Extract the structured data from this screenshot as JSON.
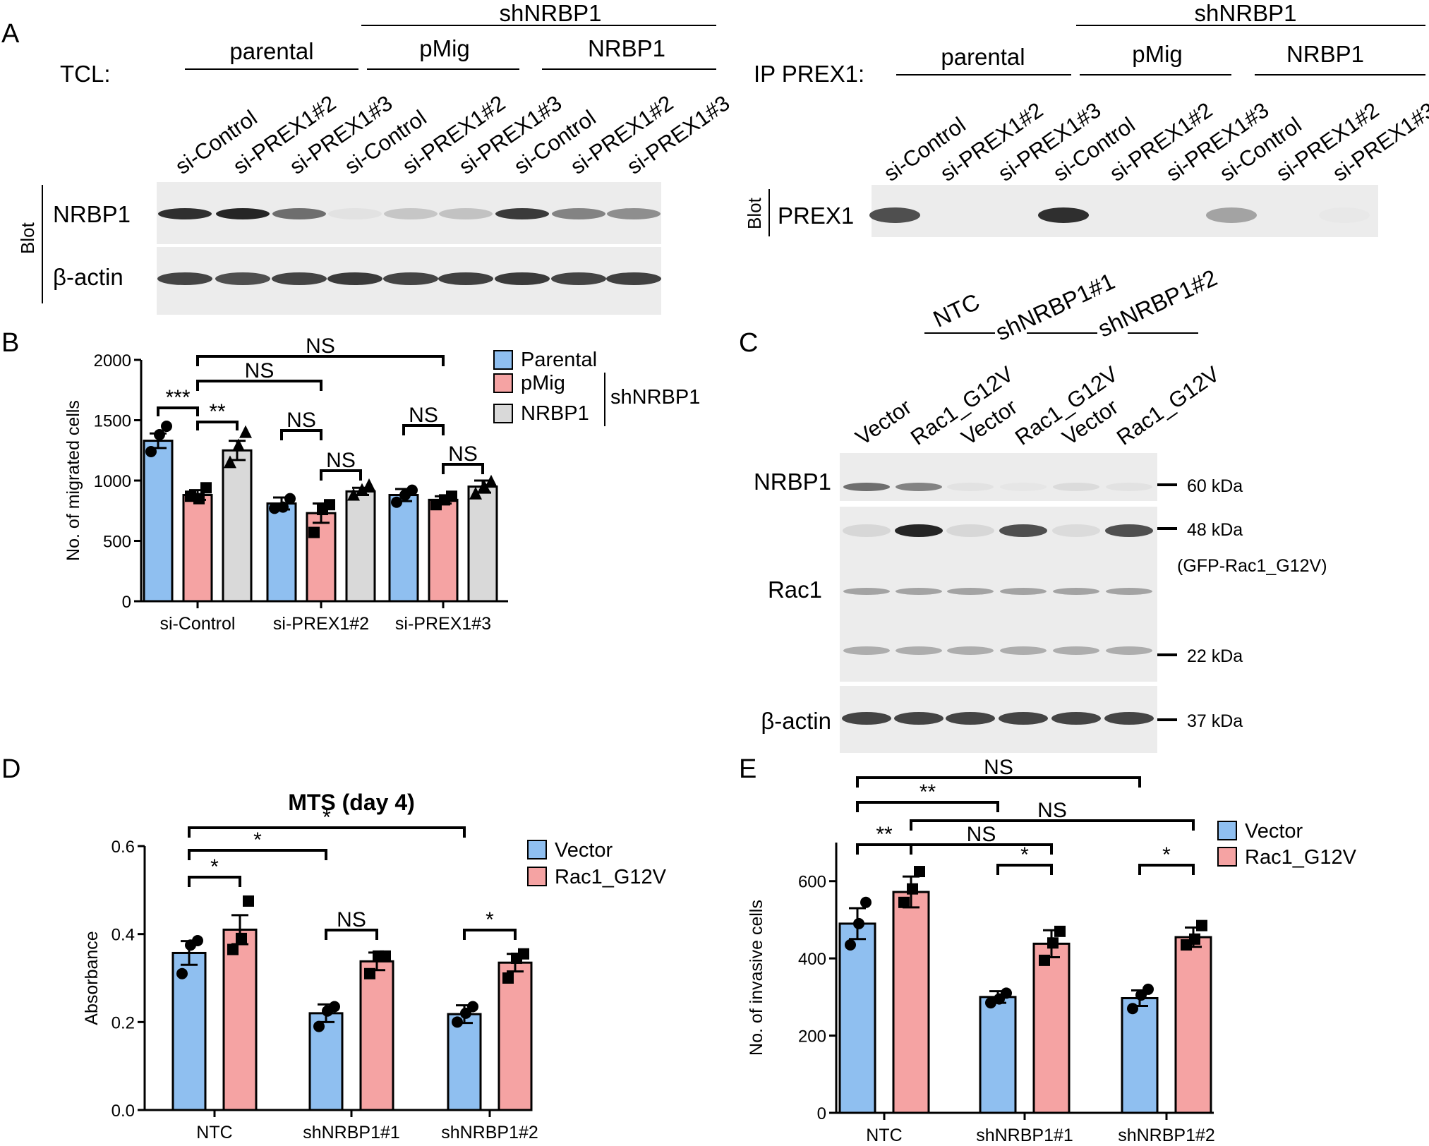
{
  "panel_labels": {
    "A": "A",
    "B": "B",
    "C": "C",
    "D": "D",
    "E": "E"
  },
  "panelA": {
    "tcl_label": "TCL:",
    "ip_label": "IP PREX1:",
    "shNRBP1": "shNRBP1",
    "groups": [
      "parental",
      "pMig",
      "NRBP1"
    ],
    "lanes": [
      "si-Control",
      "si-PREX1#2",
      "si-PREX1#3",
      "si-Control",
      "si-PREX1#2",
      "si-PREX1#3",
      "si-Control",
      "si-PREX1#2",
      "si-PREX1#3"
    ],
    "blot_label": "Blot",
    "left_rows": [
      "NRBP1",
      "β-actin"
    ],
    "right_rows": [
      "PREX1"
    ],
    "nrbp1_intensity": [
      0.9,
      0.95,
      0.6,
      0.05,
      0.18,
      0.2,
      0.85,
      0.5,
      0.45
    ],
    "actin_intensity": [
      0.8,
      0.75,
      0.8,
      0.85,
      0.8,
      0.82,
      0.85,
      0.8,
      0.82
    ],
    "prex1_intensity": [
      0.75,
      0.0,
      0.0,
      0.9,
      0.0,
      0.0,
      0.35,
      0.0,
      0.02
    ]
  },
  "panelC": {
    "groups": [
      "NTC",
      "shNRBP1#1",
      "shNRBP1#2"
    ],
    "lanes": [
      "Vector",
      "Rac1_G12V",
      "Vector",
      "Rac1_G12V",
      "Vector",
      "Rac1_G12V"
    ],
    "rows": [
      "NRBP1",
      "Rac1",
      "β-actin"
    ],
    "markers": [
      "60 kDa",
      "48 kDa",
      "(GFP-Rac1_G12V)",
      "22 kDa",
      "37 kDa"
    ],
    "nrbp1_intensity": [
      0.6,
      0.5,
      0.05,
      0.03,
      0.08,
      0.05
    ],
    "gfp_rac1_intensity": [
      0.1,
      0.95,
      0.1,
      0.75,
      0.08,
      0.75
    ],
    "actin_intensity": [
      0.8,
      0.8,
      0.8,
      0.8,
      0.8,
      0.8
    ]
  },
  "colors": {
    "blue": "#8fbff0",
    "red": "#f5a3a3",
    "gray": "#d9d9d9",
    "black": "#000000"
  },
  "chart_data": [
    {
      "panel": "B",
      "type": "bar",
      "ylabel": "No. of migrated cells",
      "ylim": [
        0,
        2000
      ],
      "yticks": [
        0,
        500,
        1000,
        1500,
        2000
      ],
      "categories": [
        "si-Control",
        "si-PREX1#2",
        "si-PREX1#3"
      ],
      "legend_group_label": "shNRBP1",
      "series": [
        {
          "name": "Parental",
          "marker": "circle",
          "values": [
            1330,
            810,
            880
          ],
          "errors": [
            60,
            50,
            50
          ],
          "points": [
            [
              1240,
              1380,
              1450
            ],
            [
              770,
              780,
              850
            ],
            [
              820,
              880,
              920
            ]
          ]
        },
        {
          "name": "pMig",
          "marker": "square",
          "values": [
            880,
            730,
            840
          ],
          "errors": [
            40,
            80,
            30
          ],
          "points": [
            [
              870,
              850,
              940
            ],
            [
              570,
              760,
              800
            ],
            [
              800,
              840,
              870
            ]
          ]
        },
        {
          "name": "NRBP1",
          "marker": "triangle",
          "values": [
            1250,
            910,
            950
          ],
          "errors": [
            80,
            30,
            50
          ],
          "points": [
            [
              1150,
              1290,
              1400
            ],
            [
              880,
              920,
              960
            ],
            [
              890,
              950,
              990
            ]
          ]
        }
      ],
      "significance": [
        "***",
        "**",
        "NS",
        "NS",
        "NS",
        "NS",
        "NS",
        "NS"
      ]
    },
    {
      "panel": "D",
      "type": "bar",
      "title": "MTS (day 4)",
      "ylabel": "Absorbance",
      "ylim": [
        0,
        0.6
      ],
      "yticks": [
        "0.0",
        "0.2",
        "0.4",
        "0.6"
      ],
      "categories": [
        "NTC",
        "shNRBP1#1",
        "shNRBP1#2"
      ],
      "series": [
        {
          "name": "Vector",
          "marker": "circle",
          "values": [
            0.357,
            0.22,
            0.218
          ],
          "errors": [
            0.027,
            0.02,
            0.02
          ],
          "points": [
            [
              0.31,
              0.375,
              0.385
            ],
            [
              0.19,
              0.225,
              0.235
            ],
            [
              0.2,
              0.22,
              0.235
            ]
          ]
        },
        {
          "name": "Rac1_G12V",
          "marker": "square",
          "values": [
            0.41,
            0.338,
            0.335
          ],
          "errors": [
            0.033,
            0.02,
            0.02
          ],
          "points": [
            [
              0.365,
              0.39,
              0.475
            ],
            [
              0.31,
              0.35,
              0.35
            ],
            [
              0.3,
              0.345,
              0.355
            ]
          ]
        }
      ],
      "significance": [
        "*",
        "*",
        "NS",
        "*",
        "*"
      ]
    },
    {
      "panel": "E",
      "type": "bar",
      "ylabel": "No. of invasive cells",
      "ylim": [
        0,
        700
      ],
      "yticks": [
        0,
        200,
        400,
        600
      ],
      "categories": [
        "NTC",
        "shNRBP1#1",
        "shNRBP1#2"
      ],
      "series": [
        {
          "name": "Vector",
          "marker": "circle",
          "values": [
            490,
            300,
            297
          ],
          "errors": [
            40,
            15,
            20
          ],
          "points": [
            [
              435,
              490,
              545
            ],
            [
              285,
              295,
              310
            ],
            [
              270,
              305,
              320
            ]
          ]
        },
        {
          "name": "Rac1_G12V",
          "marker": "square",
          "values": [
            572,
            438,
            455
          ],
          "errors": [
            40,
            35,
            25
          ],
          "points": [
            [
              545,
              580,
              625
            ],
            [
              395,
              440,
              470
            ],
            [
              435,
              450,
              485
            ]
          ]
        }
      ],
      "significance": [
        "**",
        "**",
        "NS",
        "NS",
        "NS",
        "*",
        "*"
      ]
    }
  ]
}
